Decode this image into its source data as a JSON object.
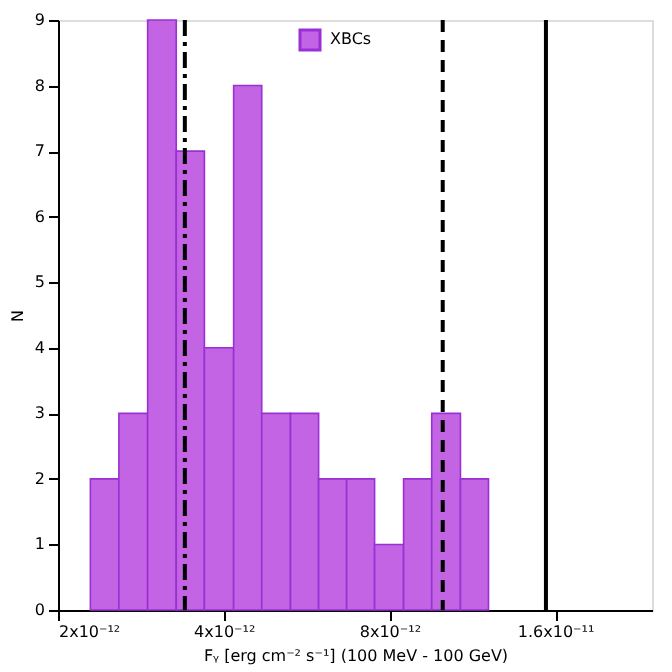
{
  "chart_data": {
    "type": "histogram",
    "xlabel": "Fᵧ [erg cm⁻² s⁻¹] (100 MeV - 100 GeV)",
    "ylabel": "N",
    "bins": [
      2.29e-12,
      2.58e-12,
      2.91e-12,
      3.28e-12,
      3.69e-12,
      4.17e-12,
      4.69e-12,
      5.29e-12,
      5.95e-12,
      6.69e-12,
      7.52e-12,
      8.49e-12,
      9.55e-12,
      1.077e-11,
      1.211e-11
    ],
    "series": [
      {
        "name": "XBCs",
        "color": "#c264e3",
        "values": [
          2,
          3,
          9,
          7,
          4,
          8,
          3,
          3,
          2,
          2,
          1,
          2,
          3,
          2
        ]
      }
    ],
    "log": "x",
    "xlim": [
      2e-12,
      2.4e-11
    ],
    "xticks": [
      {
        "value": 2e-12,
        "label": "2x10⁻¹²"
      },
      {
        "value": 4e-12,
        "label": "4x10⁻¹²"
      },
      {
        "value": 8e-12,
        "label": "8x10⁻¹²"
      },
      {
        "value": 1.6e-11,
        "label": "1.6x10⁻¹¹"
      }
    ],
    "ylim": [
      0,
      9
    ],
    "yticks": [
      0,
      1,
      2,
      3,
      4,
      5,
      6,
      7,
      8,
      9
    ],
    "ref_lines": [
      {
        "axis": "x",
        "value": 3.4e-12,
        "color": "#000000",
        "line_style": "dashdot"
      },
      {
        "axis": "x",
        "value": 1e-11,
        "color": "#000000",
        "line_style": "dashed"
      },
      {
        "axis": "x",
        "value": 1.54e-11,
        "color": "#000000",
        "line_style": "solid"
      }
    ],
    "grid": false,
    "legend": "top"
  }
}
